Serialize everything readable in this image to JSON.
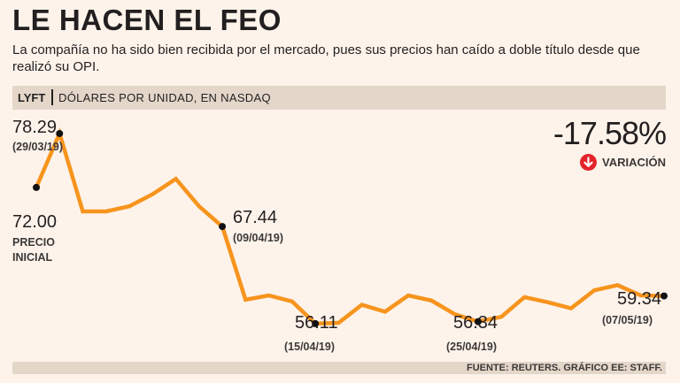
{
  "header": {
    "title": "LE HACEN EL FEO",
    "subtitle": "La compañía no ha sido bien recibida por el mercado, pues sus precios han caído a doble título desde que realizó su OPI.",
    "ticker": "LYFT",
    "units": "DÓLARES POR UNIDAD, EN NASDAQ"
  },
  "summary": {
    "change": "-17.58%",
    "change_label": "VARIACIÓN",
    "change_color": "#e4242b"
  },
  "annotations": {
    "initial": {
      "value": "72.00",
      "note_line1": "PRECIO",
      "note_line2": "INICIAL"
    },
    "peak": {
      "value": "78.29",
      "date": "(29/03/19)"
    },
    "apr9": {
      "value": "67.44",
      "date": "(09/04/19)"
    },
    "apr15": {
      "value": "56.11",
      "date": "(15/04/19)"
    },
    "apr25": {
      "value": "56.34",
      "date": "(25/04/19)"
    },
    "last": {
      "value": "59.34",
      "date": "(07/05/19)"
    }
  },
  "footer": {
    "source": "FUENTE: REUTERS. GRÁFICO EE: STAFF."
  },
  "chart_data": {
    "type": "line",
    "title": "LE HACEN EL FEO",
    "ylabel": "DÓLARES POR UNIDAD, EN NASDAQ",
    "line_color": "#f7941d",
    "ylim": [
      53,
      82
    ],
    "series": [
      {
        "name": "LYFT",
        "values": [
          72.0,
          78.29,
          69.2,
          69.2,
          69.8,
          71.2,
          73.0,
          69.8,
          67.44,
          58.9,
          59.4,
          58.7,
          56.11,
          56.2,
          58.3,
          57.5,
          59.4,
          58.8,
          57.2,
          56.34,
          56.9,
          59.2,
          58.6,
          57.9,
          60.0,
          60.6,
          59.4,
          59.34
        ]
      }
    ],
    "marked_points": [
      {
        "index": 0,
        "value": 72.0
      },
      {
        "index": 1,
        "value": 78.29,
        "date": "29/03/19"
      },
      {
        "index": 8,
        "value": 67.44,
        "date": "09/04/19"
      },
      {
        "index": 12,
        "value": 56.11,
        "date": "15/04/19"
      },
      {
        "index": 19,
        "value": 56.34,
        "date": "25/04/19"
      },
      {
        "index": 27,
        "value": 59.34,
        "date": "07/05/19"
      }
    ]
  }
}
